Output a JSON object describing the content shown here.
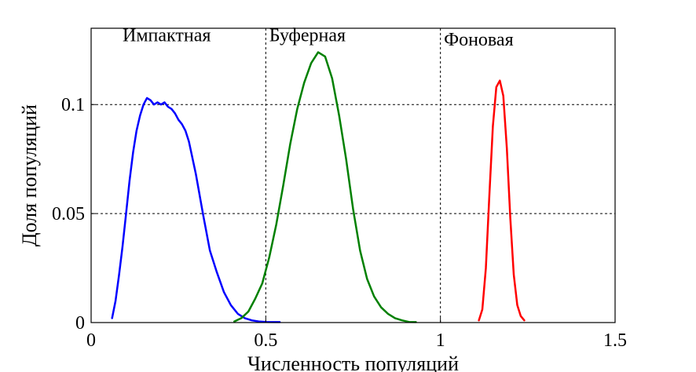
{
  "chart_data": {
    "type": "line",
    "xlabel": "Численность популяций",
    "ylabel": "Доля популяций",
    "xlim": [
      0,
      1.5
    ],
    "ylim": [
      0,
      0.135
    ],
    "xticks": [
      0,
      0.5,
      1,
      1.5
    ],
    "xtick_labels": [
      "0",
      "0.5",
      "1",
      "1.5"
    ],
    "yticks": [
      0,
      0.05,
      0.1
    ],
    "ytick_labels": [
      "0",
      "0.05",
      "0.1"
    ],
    "grid": true,
    "region_labels": [
      {
        "text": "Импактная",
        "x": 0.09,
        "y": 0.129
      },
      {
        "text": "Буферная",
        "x": 0.51,
        "y": 0.129
      },
      {
        "text": "Фоновая",
        "x": 1.01,
        "y": 0.127
      }
    ],
    "series": [
      {
        "color": "#0000ff",
        "x": [
          0.06,
          0.07,
          0.08,
          0.09,
          0.1,
          0.11,
          0.12,
          0.13,
          0.14,
          0.15,
          0.16,
          0.17,
          0.18,
          0.19,
          0.2,
          0.21,
          0.22,
          0.23,
          0.24,
          0.25,
          0.26,
          0.27,
          0.28,
          0.3,
          0.32,
          0.34,
          0.36,
          0.38,
          0.4,
          0.42,
          0.44,
          0.46,
          0.48,
          0.5,
          0.52,
          0.54
        ],
        "y": [
          0.002,
          0.01,
          0.022,
          0.035,
          0.05,
          0.065,
          0.078,
          0.088,
          0.095,
          0.1,
          0.103,
          0.102,
          0.1,
          0.101,
          0.1,
          0.101,
          0.099,
          0.098,
          0.096,
          0.093,
          0.091,
          0.088,
          0.083,
          0.068,
          0.05,
          0.033,
          0.023,
          0.014,
          0.008,
          0.004,
          0.002,
          0.001,
          0.0005,
          0.0003,
          0.0002,
          0.0002
        ]
      },
      {
        "color": "#008000",
        "x": [
          0.41,
          0.43,
          0.45,
          0.47,
          0.49,
          0.51,
          0.53,
          0.55,
          0.57,
          0.59,
          0.61,
          0.63,
          0.65,
          0.67,
          0.69,
          0.71,
          0.73,
          0.75,
          0.77,
          0.79,
          0.81,
          0.83,
          0.85,
          0.87,
          0.89,
          0.91,
          0.93
        ],
        "y": [
          0.0005,
          0.002,
          0.005,
          0.011,
          0.018,
          0.03,
          0.045,
          0.063,
          0.082,
          0.098,
          0.11,
          0.119,
          0.124,
          0.122,
          0.112,
          0.095,
          0.075,
          0.052,
          0.033,
          0.02,
          0.012,
          0.007,
          0.004,
          0.002,
          0.001,
          0.0003,
          0.0002
        ]
      },
      {
        "color": "#ff0000",
        "x": [
          1.11,
          1.12,
          1.13,
          1.14,
          1.15,
          1.16,
          1.17,
          1.18,
          1.19,
          1.2,
          1.21,
          1.22,
          1.23,
          1.24
        ],
        "y": [
          0.001,
          0.006,
          0.025,
          0.058,
          0.09,
          0.108,
          0.111,
          0.104,
          0.08,
          0.048,
          0.022,
          0.008,
          0.003,
          0.001
        ]
      }
    ]
  }
}
